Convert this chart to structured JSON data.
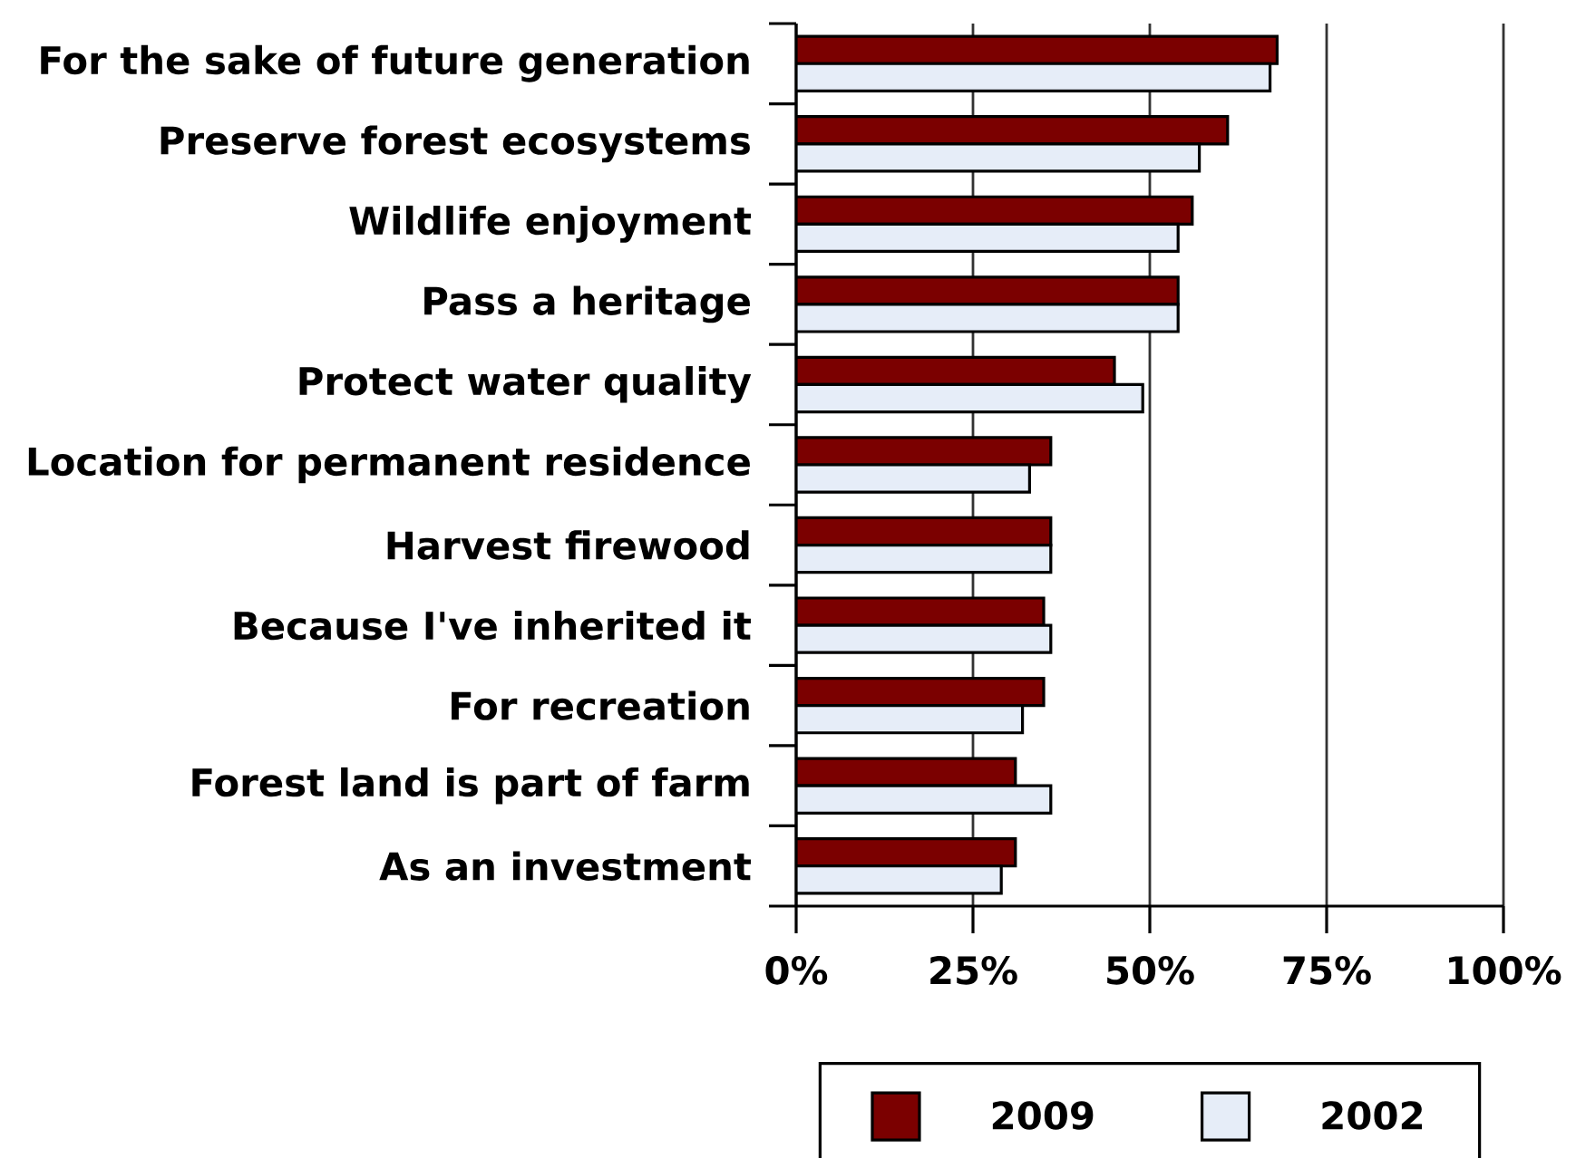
{
  "chart_data": {
    "type": "bar",
    "orientation": "horizontal",
    "categories": [
      "For the sake of future generation",
      "Preserve forest ecosystems",
      "Wildlife enjoyment",
      "Pass a heritage",
      "Protect water quality",
      "Location for permanent residence",
      "Harvest firewood",
      "Because I've inherited it",
      "For recreation",
      "Forest land is part of farm",
      "As an investment"
    ],
    "series": [
      {
        "name": "2009",
        "color": "#7b0000",
        "values": [
          68,
          61,
          56,
          54,
          45,
          36,
          36,
          35,
          35,
          31,
          31
        ]
      },
      {
        "name": "2002",
        "color": "#e6edf8",
        "values": [
          67,
          57,
          54,
          54,
          49,
          33,
          36,
          36,
          32,
          36,
          29
        ]
      }
    ],
    "xlim": [
      0,
      100
    ],
    "xticks": [
      {
        "value": 0,
        "label": "0%"
      },
      {
        "value": 25,
        "label": "25%"
      },
      {
        "value": 50,
        "label": "50%"
      },
      {
        "value": 75,
        "label": "75%"
      },
      {
        "value": 100,
        "label": "100%"
      }
    ],
    "grid": "x",
    "legend": "bottom"
  }
}
